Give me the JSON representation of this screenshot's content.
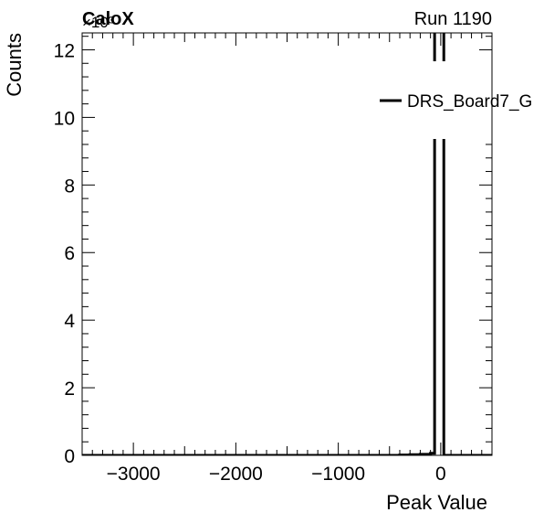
{
  "header": {
    "experiment": "CaloX",
    "run_label": "Run 1190",
    "exponent_label": "×10³"
  },
  "chart_data": {
    "type": "histogram",
    "title": "",
    "xlabel": "Peak Value",
    "ylabel": "Counts",
    "xlim": [
      -3500,
      500
    ],
    "ylim": [
      0,
      12.5
    ],
    "y_scale_label": "×10³",
    "x_ticks": [
      -3000,
      -2000,
      -1000,
      0
    ],
    "x_tick_labels": [
      "−3000",
      "−2000",
      "−1000",
      "0"
    ],
    "y_ticks": [
      0,
      2,
      4,
      6,
      8,
      10,
      12
    ],
    "y_tick_labels": [
      "0",
      "2",
      "4",
      "6",
      "8",
      "10",
      "12"
    ],
    "legend": {
      "entries": [
        "DRS_Board7_G"
      ],
      "placement": "right"
    },
    "series": [
      {
        "name": "DRS_Board7_G",
        "color": "#000000",
        "bins": [
          {
            "x0": -3500,
            "x1": -400,
            "value": 0.0
          },
          {
            "x0": -400,
            "x1": -300,
            "value": 0.01
          },
          {
            "x0": -300,
            "x1": -200,
            "value": 0.02
          },
          {
            "x0": -200,
            "x1": -100,
            "value": 0.03
          },
          {
            "x0": -100,
            "x1": -60,
            "value": 0.06
          },
          {
            "x0": -60,
            "x1": 30,
            "value": 12.8
          },
          {
            "x0": 30,
            "x1": 500,
            "value": 0.0
          }
        ]
      }
    ]
  }
}
